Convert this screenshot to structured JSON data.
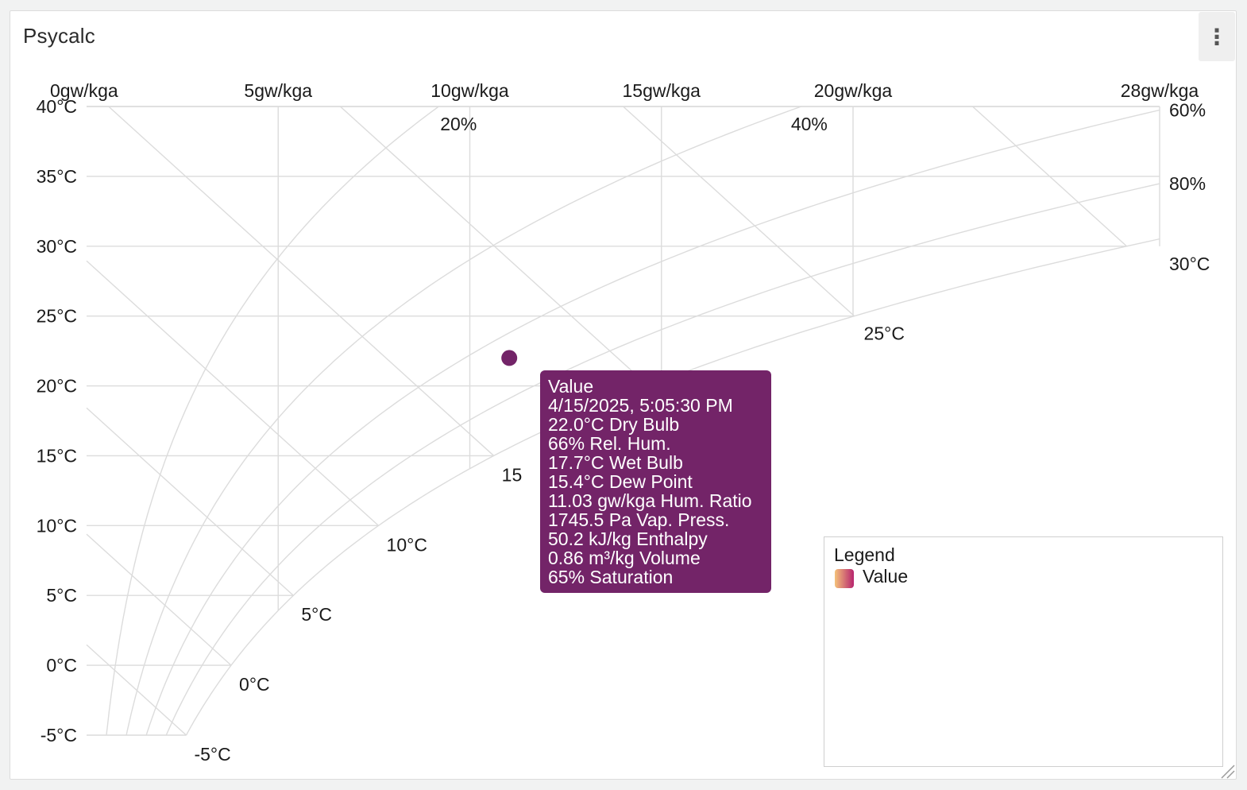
{
  "panel": {
    "title": "Psycalc",
    "menu_icon": "kebab-menu-icon",
    "resize_icon": "resize-handle-icon"
  },
  "colors": {
    "point": "#732468",
    "tooltip_bg": "#732468",
    "grid": "#dcdcdc",
    "legend_gradient_start": "#f4c27a",
    "legend_gradient_end": "#b7246e"
  },
  "chart_data": {
    "type": "scatter",
    "chart_kind": "psychrometric",
    "x_axis": {
      "quantity": "humidity ratio",
      "range": [
        0,
        28
      ],
      "position": "top",
      "ticks": [
        {
          "value": 0,
          "label": "0gw/kga"
        },
        {
          "value": 5,
          "label": "5gw/kga"
        },
        {
          "value": 10,
          "label": "10gw/kga"
        },
        {
          "value": 15,
          "label": "15gw/kga"
        },
        {
          "value": 20,
          "label": "20gw/kga"
        },
        {
          "value": 28,
          "label": "28gw/kga"
        }
      ]
    },
    "y_axis": {
      "quantity": "dry bulb temperature",
      "range": [
        -5,
        40
      ],
      "ticks": [
        {
          "value": 40,
          "label": "40°C"
        },
        {
          "value": 35,
          "label": "35°C"
        },
        {
          "value": 30,
          "label": "30°C"
        },
        {
          "value": 25,
          "label": "25°C"
        },
        {
          "value": 20,
          "label": "20°C"
        },
        {
          "value": 15,
          "label": "15°C"
        },
        {
          "value": 10,
          "label": "10°C"
        },
        {
          "value": 5,
          "label": "5°C"
        },
        {
          "value": 0,
          "label": "0°C"
        },
        {
          "value": -5,
          "label": "-5°C"
        }
      ]
    },
    "rh_curves": [
      {
        "rh": 20,
        "label": "20%"
      },
      {
        "rh": 40,
        "label": "40%"
      },
      {
        "rh": 60,
        "label": "60%"
      },
      {
        "rh": 80,
        "label": "80%"
      },
      {
        "rh": 100,
        "label": ""
      }
    ],
    "wet_bulb_lines": [
      {
        "twb": -5,
        "label": "-5°C"
      },
      {
        "twb": 0,
        "label": "0°C"
      },
      {
        "twb": 5,
        "label": "5°C"
      },
      {
        "twb": 10,
        "label": "10°C"
      },
      {
        "twb": 15,
        "label": "15"
      },
      {
        "twb": 20,
        "label": ""
      },
      {
        "twb": 25,
        "label": "25°C"
      },
      {
        "twb": 30,
        "label": "30°C"
      }
    ],
    "series": [
      {
        "name": "Value",
        "points": [
          {
            "x": 11.03,
            "y": 22.0
          }
        ]
      }
    ],
    "grid": true,
    "legend": {
      "title": "Legend",
      "placement": "bottom-right",
      "items": [
        "Value"
      ]
    }
  },
  "tooltip": {
    "lines": [
      "Value",
      "4/15/2025, 5:05:30 PM",
      "22.0°C Dry Bulb",
      "66% Rel. Hum.",
      "17.7°C Wet Bulb",
      "15.4°C Dew Point",
      "11.03 gw/kga Hum. Ratio",
      "1745.5 Pa Vap. Press.",
      "50.2 kJ/kg Enthalpy",
      "0.86 m³/kg Volume",
      "65% Saturation"
    ]
  }
}
